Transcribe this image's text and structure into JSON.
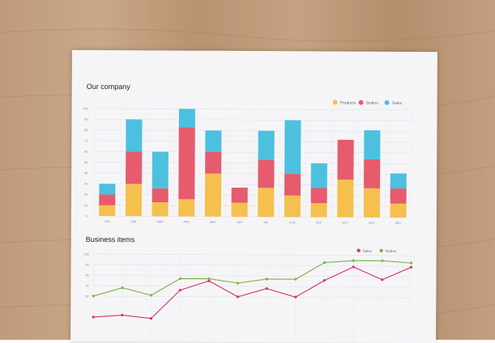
{
  "colors": {
    "paper": "#f5f4f7"
  },
  "chart_data": [
    {
      "type": "bar",
      "stacked": true,
      "title": "Our company",
      "categories": [
        "JAN",
        "FEB",
        "MAR",
        "APR",
        "MAY",
        "JUN",
        "JUL",
        "AUG",
        "SEP",
        "OCT",
        "NOV",
        "DEC"
      ],
      "ylim": [
        0,
        100
      ],
      "yticks": [
        0,
        10,
        20,
        30,
        40,
        50,
        60,
        70,
        80,
        90,
        100
      ],
      "grid": true,
      "legend": "top-right",
      "series": [
        {
          "name": "Products",
          "color": "#f6c04e",
          "values": [
            10,
            30,
            13,
            16,
            40,
            13,
            27,
            20,
            13,
            35,
            27,
            13
          ]
        },
        {
          "name": "Orders",
          "color": "#e65b6e",
          "values": [
            10,
            30,
            13,
            67,
            20,
            14,
            26,
            20,
            14,
            37,
            27,
            14
          ]
        },
        {
          "name": "Sales",
          "color": "#4ec0df",
          "values": [
            10,
            30,
            34,
            17,
            20,
            0,
            27,
            50,
            23,
            0,
            27,
            14
          ]
        }
      ]
    },
    {
      "type": "line",
      "title": "Business items",
      "categories": [
        "JAN",
        "FEB",
        "MAR",
        "APR",
        "MAY",
        "JUN",
        "JUL",
        "AUG",
        "SEP",
        "OCT",
        "NOV",
        "DEC"
      ],
      "ylim": [
        0,
        100
      ],
      "yticks": [
        60,
        70,
        80,
        90,
        100
      ],
      "grid": true,
      "legend": "top-right",
      "series": [
        {
          "name": "Sales",
          "color": "#d6336c",
          "values": [
            40,
            42,
            39,
            66,
            75,
            60,
            68,
            60,
            76,
            89,
            77,
            89
          ]
        },
        {
          "name": "Orders",
          "color": "#7cb342",
          "values": [
            60,
            68,
            61,
            77,
            77,
            73,
            77,
            77,
            93,
            95,
            95,
            93
          ]
        }
      ]
    }
  ]
}
